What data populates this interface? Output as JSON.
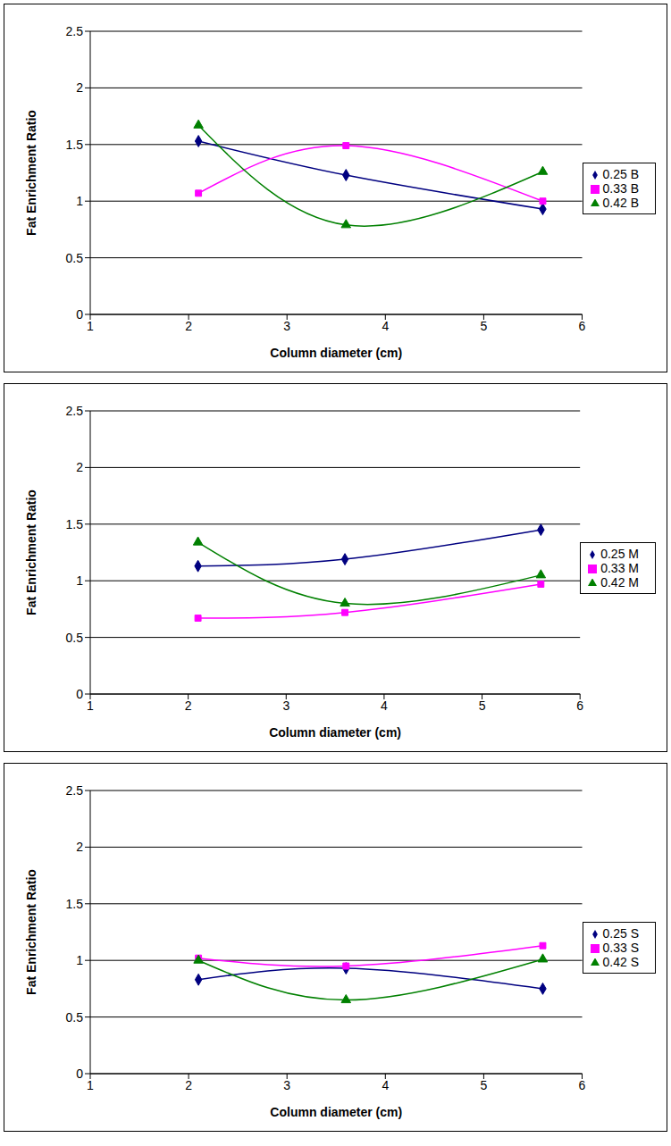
{
  "chart_data": [
    {
      "type": "line",
      "x_label": "Column diameter (cm)",
      "y_label": "Fat Enrichment Ratio",
      "x": [
        2.1,
        3.6,
        5.6
      ],
      "xlim": [
        1,
        6
      ],
      "xticks": [
        1,
        2,
        3,
        4,
        5,
        6
      ],
      "ylim": [
        0,
        2.5
      ],
      "yticks": [
        0,
        0.5,
        1,
        1.5,
        2,
        2.5
      ],
      "grid": true,
      "legend": "right",
      "series": [
        {
          "name": "0.25 B",
          "color": "#000080",
          "marker": "diamond",
          "line_style": "solid",
          "values": [
            1.53,
            1.23,
            0.93
          ]
        },
        {
          "name": "0.33 B",
          "color": "#ff00ff",
          "marker": "square",
          "line_style": "solid",
          "values": [
            1.07,
            1.49,
            1.0
          ]
        },
        {
          "name": "0.42 B",
          "color": "#008000",
          "marker": "triangle",
          "line_style": "solid",
          "values": [
            1.67,
            0.79,
            1.26
          ]
        }
      ]
    },
    {
      "type": "line",
      "x_label": "Column diameter (cm)",
      "y_label": "Fat Enrichment Ratio",
      "x": [
        2.1,
        3.6,
        5.6
      ],
      "xlim": [
        1,
        6
      ],
      "xticks": [
        1,
        2,
        3,
        4,
        5,
        6
      ],
      "ylim": [
        0,
        2.5
      ],
      "yticks": [
        0,
        0.5,
        1,
        1.5,
        2,
        2.5
      ],
      "grid": true,
      "legend": "right",
      "series": [
        {
          "name": "0.25 M",
          "color": "#000080",
          "marker": "diamond",
          "line_style": "solid",
          "values": [
            1.13,
            1.19,
            1.45
          ]
        },
        {
          "name": "0.33 M",
          "color": "#ff00ff",
          "marker": "square",
          "line_style": "solid",
          "values": [
            0.67,
            0.72,
            0.97
          ]
        },
        {
          "name": "0.42 M",
          "color": "#008000",
          "marker": "triangle",
          "line_style": "solid",
          "values": [
            1.34,
            0.8,
            1.05
          ]
        }
      ]
    },
    {
      "type": "line",
      "x_label": "Column diameter (cm)",
      "y_label": "Fat Enrichment Ratio",
      "x": [
        2.1,
        3.6,
        5.6
      ],
      "xlim": [
        1,
        6
      ],
      "xticks": [
        1,
        2,
        3,
        4,
        5,
        6
      ],
      "ylim": [
        0,
        2.5
      ],
      "yticks": [
        0,
        0.5,
        1,
        1.5,
        2,
        2.5
      ],
      "grid": true,
      "legend": "right",
      "series": [
        {
          "name": "0.25 S",
          "color": "#000080",
          "marker": "diamond",
          "line_style": "solid",
          "values": [
            0.83,
            0.93,
            0.75
          ]
        },
        {
          "name": "0.33 S",
          "color": "#ff00ff",
          "marker": "square",
          "line_style": "solid",
          "values": [
            1.02,
            0.95,
            1.13
          ]
        },
        {
          "name": "0.42 S",
          "color": "#008000",
          "marker": "triangle",
          "line_style": "solid",
          "values": [
            1.0,
            0.65,
            1.01
          ]
        }
      ]
    }
  ]
}
